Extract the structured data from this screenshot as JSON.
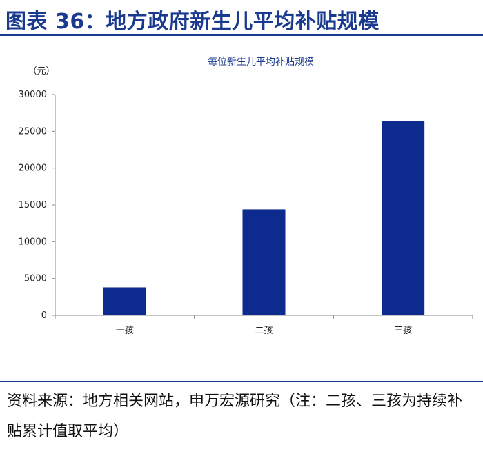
{
  "figure_title": "图表 36：地方政府新生儿平均补贴规模",
  "source_note": "资料来源：地方相关网站，申万宏源研究（注：二孩、三孩为持续补贴累计值取平均）",
  "colors": {
    "accent": "#1a3a8f",
    "bar": "#0d2a8f",
    "axis": "#888888"
  },
  "chart_data": {
    "type": "bar",
    "title": "每位新生儿平均补贴规模",
    "ylabel": "（元）",
    "xlabel": "",
    "categories": [
      "一孩",
      "二孩",
      "三孩"
    ],
    "values": [
      3800,
      14400,
      26400
    ],
    "ylim": [
      0,
      30000
    ],
    "yticks": [
      0,
      5000,
      10000,
      15000,
      20000,
      25000,
      30000
    ],
    "grid": false,
    "legend": "none"
  }
}
